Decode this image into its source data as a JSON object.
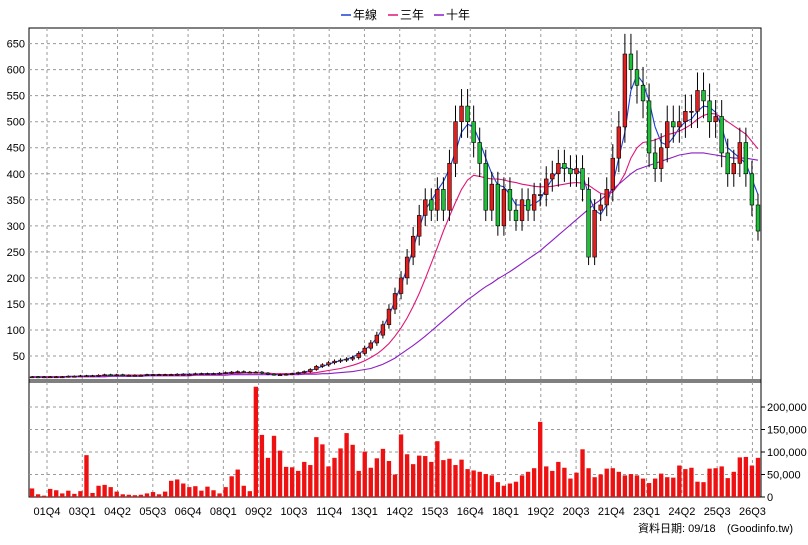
{
  "legend": [
    {
      "label": "年線",
      "color": "#1a3fd6"
    },
    {
      "label": "三年",
      "color": "#e0157a"
    },
    {
      "label": "十年",
      "color": "#8b1ec4"
    }
  ],
  "footer": {
    "date_label": "資料日期: 09/18",
    "source": "(Goodinfo.tw)"
  },
  "chart_data": {
    "type": "candlestick-volume",
    "x_ticks": [
      "01Q4",
      "03Q1",
      "04Q2",
      "05Q3",
      "06Q4",
      "08Q1",
      "09Q2",
      "10Q3",
      "11Q4",
      "13Q1",
      "14Q2",
      "15Q3",
      "16Q4",
      "18Q1",
      "19Q2",
      "20Q3",
      "21Q4",
      "23Q1",
      "24Q2",
      "25Q3",
      "26Q3"
    ],
    "price_axis": {
      "ylim": [
        0,
        680
      ],
      "ticks": [
        50,
        100,
        150,
        200,
        250,
        300,
        350,
        400,
        450,
        500,
        550,
        600,
        650
      ]
    },
    "volume_axis": {
      "ylim": [
        0,
        260000
      ],
      "ticks": [
        "0",
        "50,000",
        "100,000",
        "150,000",
        "200,000"
      ],
      "tick_values": [
        0,
        50000,
        100000,
        150000,
        200000
      ]
    },
    "close": [
      10,
      9,
      10,
      10,
      10,
      10,
      11,
      11,
      12,
      12,
      12,
      13,
      14,
      13,
      14,
      13,
      13,
      13,
      13,
      14,
      14,
      14,
      14,
      14,
      15,
      15,
      15,
      16,
      16,
      16,
      16,
      17,
      18,
      19,
      20,
      19,
      19,
      19,
      17,
      15,
      14,
      14,
      15,
      16,
      18,
      20,
      24,
      30,
      33,
      37,
      40,
      42,
      44,
      47,
      55,
      65,
      75,
      90,
      110,
      140,
      170,
      200,
      240,
      280,
      320,
      350,
      330,
      370,
      330,
      420,
      500,
      530,
      500,
      460,
      420,
      330,
      380,
      300,
      370,
      330,
      310,
      350,
      330,
      360,
      360,
      390,
      400,
      420,
      410,
      400,
      410,
      370,
      240,
      330,
      340,
      370,
      430,
      490,
      630,
      600,
      570,
      540,
      440,
      410,
      450,
      500,
      490,
      500,
      520,
      520,
      560,
      540,
      500,
      510,
      440,
      400,
      420,
      460,
      400,
      340,
      290
    ],
    "year_ma": [
      10,
      10,
      10,
      10,
      10,
      10,
      11,
      11,
      11,
      12,
      12,
      12,
      13,
      13,
      13,
      13,
      13,
      13,
      13,
      14,
      14,
      14,
      14,
      14,
      14,
      15,
      15,
      15,
      16,
      16,
      16,
      16,
      17,
      18,
      18,
      18,
      18,
      18,
      17,
      16,
      15,
      15,
      15,
      16,
      17,
      19,
      22,
      26,
      30,
      34,
      38,
      41,
      44,
      48,
      54,
      62,
      71,
      85,
      104,
      128,
      156,
      186,
      218,
      256,
      295,
      331,
      348,
      368,
      385,
      410,
      442,
      480,
      495,
      490,
      462,
      430,
      400,
      378,
      375,
      360,
      340,
      340,
      338,
      342,
      350,
      372,
      390,
      408,
      415,
      408,
      408,
      398,
      360,
      330,
      322,
      340,
      380,
      430,
      480,
      560,
      590,
      575,
      540,
      490,
      460,
      455,
      470,
      488,
      500,
      505,
      520,
      530,
      528,
      518,
      490,
      450,
      440,
      430,
      420,
      390,
      360
    ],
    "three_year_ma": [
      10,
      10,
      10,
      10,
      10,
      10,
      10,
      11,
      11,
      11,
      11,
      12,
      12,
      12,
      12,
      13,
      13,
      13,
      13,
      13,
      13,
      14,
      14,
      14,
      14,
      14,
      14,
      15,
      15,
      15,
      15,
      15,
      16,
      16,
      16,
      17,
      17,
      17,
      17,
      17,
      16,
      16,
      16,
      16,
      16,
      17,
      17,
      18,
      20,
      22,
      24,
      26,
      29,
      32,
      36,
      41,
      47,
      54,
      63,
      74,
      88,
      104,
      123,
      145,
      170,
      198,
      228,
      258,
      290,
      318,
      345,
      370,
      388,
      397,
      395,
      392,
      390,
      390,
      388,
      385,
      383,
      380,
      378,
      376,
      375,
      375,
      376,
      378,
      380,
      382,
      383,
      382,
      378,
      370,
      362,
      360,
      365,
      380,
      400,
      430,
      450,
      460,
      462,
      465,
      470,
      475,
      478,
      482,
      488,
      495,
      505,
      512,
      516,
      515,
      508,
      500,
      492,
      484,
      476,
      462,
      448
    ],
    "ten_year_ma": [
      9,
      9,
      9,
      9,
      9,
      9,
      10,
      10,
      10,
      10,
      10,
      10,
      10,
      11,
      11,
      11,
      11,
      11,
      11,
      12,
      12,
      12,
      12,
      12,
      12,
      12,
      12,
      13,
      13,
      13,
      13,
      13,
      13,
      14,
      14,
      14,
      14,
      14,
      14,
      14,
      14,
      14,
      14,
      14,
      14,
      15,
      15,
      15,
      16,
      16,
      17,
      18,
      19,
      20,
      22,
      24,
      26,
      30,
      34,
      40,
      46,
      54,
      62,
      70,
      79,
      88,
      98,
      108,
      118,
      128,
      138,
      148,
      158,
      166,
      175,
      183,
      190,
      198,
      205,
      212,
      220,
      228,
      236,
      244,
      252,
      262,
      272,
      282,
      292,
      302,
      312,
      322,
      332,
      342,
      350,
      360,
      370,
      380,
      390,
      400,
      408,
      412,
      416,
      420,
      424,
      428,
      432,
      436,
      438,
      440,
      440,
      440,
      438,
      436,
      434,
      432,
      430,
      430,
      430,
      428,
      426
    ],
    "volume": [
      19000,
      6000,
      3000,
      18000,
      15000,
      8000,
      14000,
      7000,
      13000,
      93000,
      9000,
      25000,
      27000,
      22000,
      12000,
      6000,
      5000,
      4000,
      5000,
      8000,
      11000,
      6000,
      12000,
      36000,
      39000,
      30000,
      22000,
      24000,
      14000,
      23000,
      15000,
      8000,
      22000,
      46000,
      61000,
      25000,
      13000,
      245000,
      138000,
      87000,
      136000,
      103000,
      67000,
      66000,
      58000,
      78000,
      71000,
      133000,
      117000,
      68000,
      87000,
      108000,
      142000,
      116000,
      58000,
      101000,
      65000,
      86000,
      107000,
      80000,
      50000,
      139000,
      95000,
      73000,
      92000,
      91000,
      78000,
      124000,
      82000,
      85000,
      71000,
      83000,
      62000,
      59000,
      56000,
      51000,
      48000,
      33000,
      25000,
      30000,
      34000,
      48000,
      56000,
      64000,
      167000,
      68000,
      58000,
      78000,
      65000,
      41000,
      54000,
      106000,
      64000,
      44000,
      50000,
      63000,
      64000,
      56000,
      48000,
      51000,
      48000,
      41000,
      31000,
      41000,
      52000,
      44000,
      43000,
      70000,
      62000,
      65000,
      34000,
      33000,
      63000,
      64000,
      68000,
      42000,
      56000,
      88000,
      89000,
      70000,
      87000
    ]
  }
}
